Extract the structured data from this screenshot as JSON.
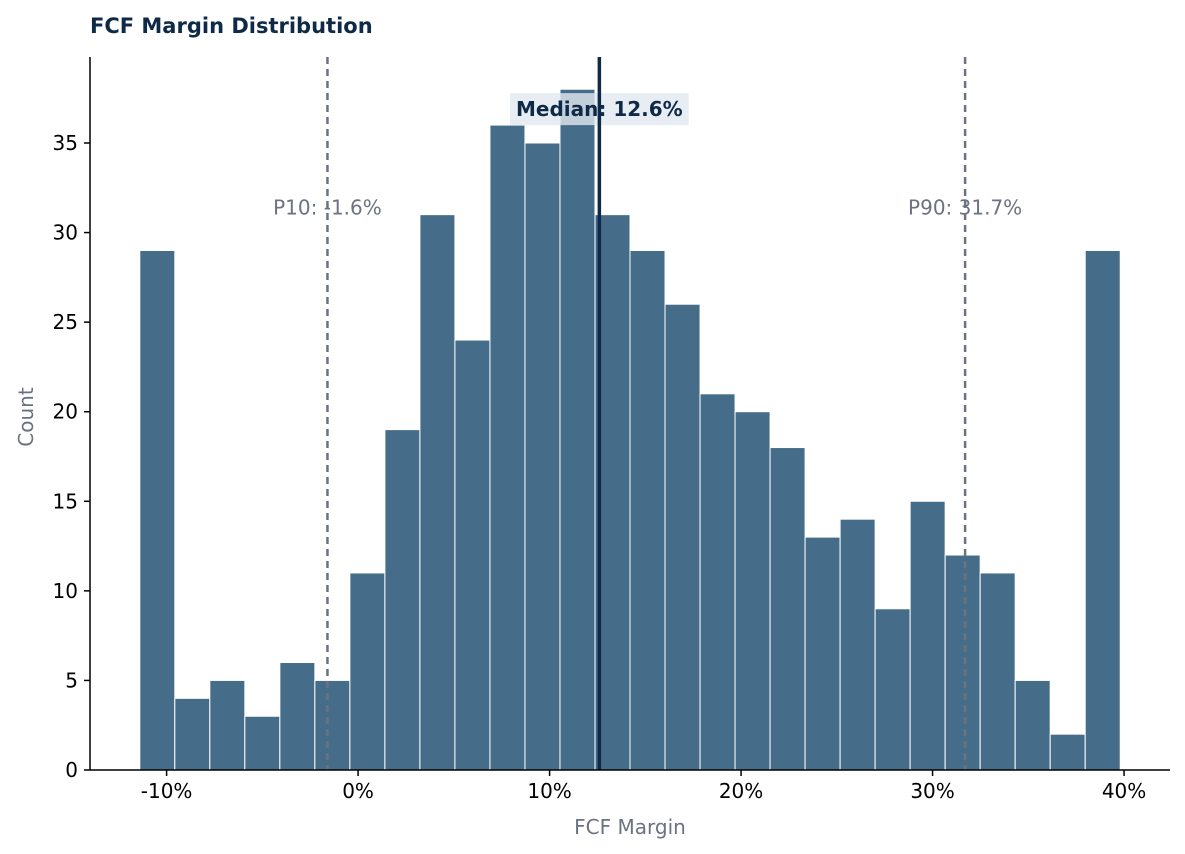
{
  "chart_data": {
    "type": "bar",
    "title": "FCF Margin Distribution",
    "xlabel": "FCF Margin",
    "ylabel": "Count",
    "x_tick_labels": [
      "-10%",
      "0%",
      "10%",
      "20%",
      "30%",
      "40%"
    ],
    "x_ticks": [
      -10,
      0,
      10,
      20,
      30,
      40
    ],
    "xlim": [
      -14,
      42.4
    ],
    "y_ticks": [
      0,
      5,
      10,
      15,
      20,
      25,
      30,
      35
    ],
    "ylim": [
      0,
      39.8
    ],
    "grid": false,
    "bins": {
      "start": -11.4,
      "width": 1.8286,
      "counts": [
        29,
        4,
        5,
        3,
        6,
        5,
        11,
        19,
        31,
        24,
        36,
        35,
        38,
        31,
        29,
        26,
        21,
        20,
        18,
        13,
        14,
        9,
        15,
        12,
        11,
        5,
        2,
        29
      ]
    },
    "reference_lines": [
      {
        "name": "P10",
        "value": -1.6,
        "label": "P10: -1.6%",
        "style": "dashed"
      },
      {
        "name": "P90",
        "value": 31.7,
        "label": "P90: 31.7%",
        "style": "dashed"
      },
      {
        "name": "Median",
        "value": 12.6,
        "label": "Median: 12.6%",
        "style": "solid"
      }
    ],
    "colors": {
      "bar": "#456d89",
      "bar_edge": "#ffffff",
      "median": "#0e2a47",
      "percentile": "#6b7280",
      "title": "#0e2a47",
      "axis_label": "#6b7280",
      "median_label_bg": "#e2e8f0"
    }
  }
}
